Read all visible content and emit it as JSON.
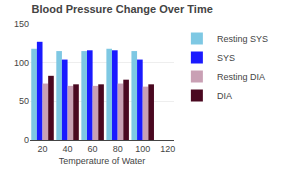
{
  "chart_data": {
    "type": "bar",
    "title": "Blood Pressure Change Over Time",
    "xlabel": "Temperature of Water",
    "x": [
      20,
      40,
      60,
      80,
      100
    ],
    "series": [
      {
        "name": "Resting SYS",
        "color": "#7ec8e3",
        "values": [
          118,
          115,
          115,
          118,
          115
        ]
      },
      {
        "name": "SYS",
        "color": "#1a1aff",
        "values": [
          127,
          104,
          116,
          116,
          104
        ]
      },
      {
        "name": "Resting DIA",
        "color": "#c9a0b4",
        "values": [
          73,
          70,
          70,
          73,
          69
        ]
      },
      {
        "name": "DIA",
        "color": "#4a0820",
        "values": [
          83,
          72,
          72,
          78,
          72
        ]
      }
    ],
    "xlim": [
      10,
      125
    ],
    "xticks": [
      20,
      40,
      60,
      80,
      100,
      120
    ],
    "ylim": [
      0,
      150
    ],
    "yticks": [
      0,
      50,
      100,
      150
    ],
    "grid": true,
    "legend": "upper right"
  }
}
